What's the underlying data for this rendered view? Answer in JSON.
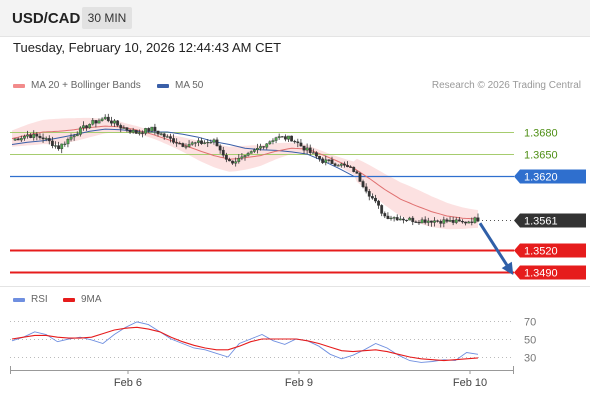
{
  "header": {
    "symbol": "USD/CAD",
    "timeframe": "30 MIN"
  },
  "timestamp": "Tuesday, February 10, 2026 12:44:43 AM CET",
  "legend": {
    "ma20_label": "MA 20 + Bollinger Bands",
    "ma50_label": "MA 50",
    "rsi_label": "RSI",
    "ma9_label": "9MA"
  },
  "credit": "Research © 2026 Trading Central",
  "colors": {
    "ma20": "#f28b8b",
    "ma50": "#3a5fa8",
    "band": "#fbdcdc",
    "resistance": "#a6cc6e",
    "pivot": "#2f6fce",
    "support": "#e61c1c",
    "current": "#333333",
    "rsi": "#6f8fe0",
    "ma9": "#e61c1c",
    "arrow": "#2f5fa8"
  },
  "chart_data": [
    {
      "type": "candlestick",
      "title": "USD/CAD",
      "x_tick_labels": [
        "Feb 6",
        "Feb 9",
        "Feb 10"
      ],
      "levels": [
        {
          "value": 1.368,
          "label": "1.3680",
          "kind": "resistance"
        },
        {
          "value": 1.365,
          "label": "1.3650",
          "kind": "resistance"
        },
        {
          "value": 1.362,
          "label": "1.3620",
          "kind": "pivot"
        },
        {
          "value": 1.3561,
          "label": "1.3561",
          "kind": "current"
        },
        {
          "value": 1.352,
          "label": "1.3520",
          "kind": "support"
        },
        {
          "value": 1.349,
          "label": "1.3490",
          "kind": "support"
        }
      ],
      "price_path": [
        1.3669,
        1.3676,
        1.3672,
        1.3659,
        1.3677,
        1.3691,
        1.3699,
        1.3687,
        1.3679,
        1.3684,
        1.3672,
        1.3663,
        1.3665,
        1.3667,
        1.3639,
        1.3645,
        1.366,
        1.3673,
        1.3671,
        1.3655,
        1.3641,
        1.3637,
        1.3628,
        1.3596,
        1.3566,
        1.3563,
        1.356,
        1.356,
        1.3559,
        1.3557,
        1.3562
      ],
      "ma20_path": [
        1.3671,
        1.3676,
        1.368,
        1.3681,
        1.3683,
        1.3686,
        1.3688,
        1.3687,
        1.3683,
        1.3677,
        1.367,
        1.3663,
        1.3655,
        1.3648,
        1.3643,
        1.3645,
        1.3648,
        1.3654,
        1.3658,
        1.3657,
        1.3649,
        1.364,
        1.3631,
        1.3617,
        1.3602,
        1.3589,
        1.358,
        1.3572,
        1.3566,
        1.3563,
        1.3562
      ],
      "ma50_path": [
        1.3663,
        1.3666,
        1.3668,
        1.3672,
        1.3676,
        1.3681,
        1.3684,
        1.3683,
        1.3681,
        1.368,
        1.368,
        1.3677,
        1.3673,
        1.3667,
        1.3663,
        1.3658,
        1.3656,
        1.3655,
        1.3653,
        1.365,
        1.3641,
        1.3631,
        1.362
      ],
      "arrow": {
        "from": 1.3559,
        "to": 1.349
      }
    },
    {
      "type": "line",
      "title": "RSI",
      "y_tick_labels": [
        "70",
        "50",
        "30"
      ],
      "series": [
        {
          "name": "RSI",
          "values": [
            48,
            52,
            58,
            55,
            47,
            50,
            52,
            49,
            45,
            55,
            63,
            69,
            66,
            58,
            50,
            45,
            40,
            38,
            34,
            30,
            45,
            50,
            55,
            48,
            44,
            50,
            48,
            42,
            33,
            28,
            32,
            38,
            45,
            40,
            32,
            26,
            24,
            25,
            27,
            26,
            35,
            33
          ]
        },
        {
          "name": "9MA",
          "values": [
            50,
            52,
            54,
            54,
            52,
            51,
            51,
            52,
            56,
            60,
            62,
            63,
            61,
            58,
            52,
            47,
            43,
            40,
            38,
            38,
            42,
            47,
            50,
            50,
            50,
            50,
            48,
            45,
            41,
            37,
            36,
            37,
            38,
            36,
            33,
            30,
            28,
            27,
            26,
            27,
            28,
            29
          ]
        }
      ]
    }
  ]
}
